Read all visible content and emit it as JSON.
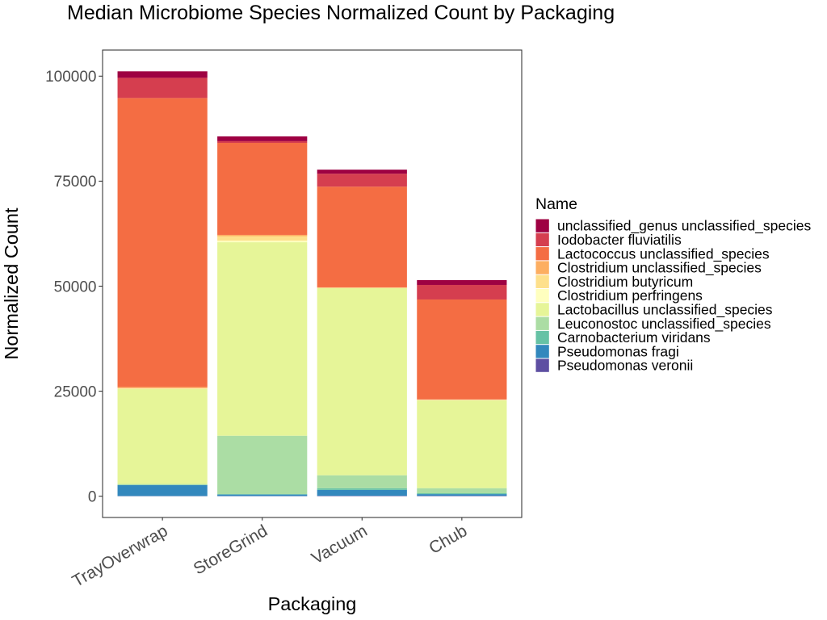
{
  "chart_data": {
    "type": "bar",
    "stacked": true,
    "title": "Median Microbiome Species Normalized Count by Packaging",
    "xlabel": "Packaging",
    "ylabel": "Normalized Count",
    "categories": [
      "TrayOverwrap",
      "StoreGrind",
      "Vacuum",
      "Chub"
    ],
    "ylim": [
      -5060,
      106210
    ],
    "yticks": [
      0,
      25000,
      50000,
      75000,
      100000
    ],
    "grid": false,
    "legend": {
      "title": "Name",
      "placement": "right"
    },
    "series": [
      {
        "name": "unclassified_genus unclassified_species",
        "color": "#9E0142",
        "values": [
          1550,
          1150,
          960,
          1150
        ]
      },
      {
        "name": "Iodobacter fluviatilis",
        "color": "#D53E4F",
        "values": [
          4800,
          400,
          3080,
          3460
        ]
      },
      {
        "name": "Lactococcus unclassified_species",
        "color": "#F46D43",
        "values": [
          68800,
          21900,
          23980,
          23790
        ]
      },
      {
        "name": "Clostridium unclassified_species",
        "color": "#FDAE61",
        "values": [
          300,
          300,
          100,
          100
        ]
      },
      {
        "name": "Clostridium butyricum",
        "color": "#FEE08B",
        "values": [
          100,
          1050,
          50,
          50
        ]
      },
      {
        "name": "Clostridium perfringens",
        "color": "#FFFFBF",
        "values": [
          100,
          400,
          50,
          50
        ]
      },
      {
        "name": "Lactobacillus unclassified_species",
        "color": "#E6F598",
        "values": [
          22600,
          46060,
          44530,
          20920
        ]
      },
      {
        "name": "Leuconostoc unclassified_species",
        "color": "#ABDDA4",
        "values": [
          200,
          13900,
          3090,
          1220
        ]
      },
      {
        "name": "Carnobacterium viridans",
        "color": "#66C2A5",
        "values": [
          50,
          100,
          400,
          200
        ]
      },
      {
        "name": "Pseudomonas fragi",
        "color": "#3288BD",
        "values": [
          2600,
          350,
          1400,
          400
        ]
      },
      {
        "name": "Pseudomonas veronii",
        "color": "#5E4FA2",
        "values": [
          50,
          50,
          100,
          100
        ]
      }
    ]
  }
}
